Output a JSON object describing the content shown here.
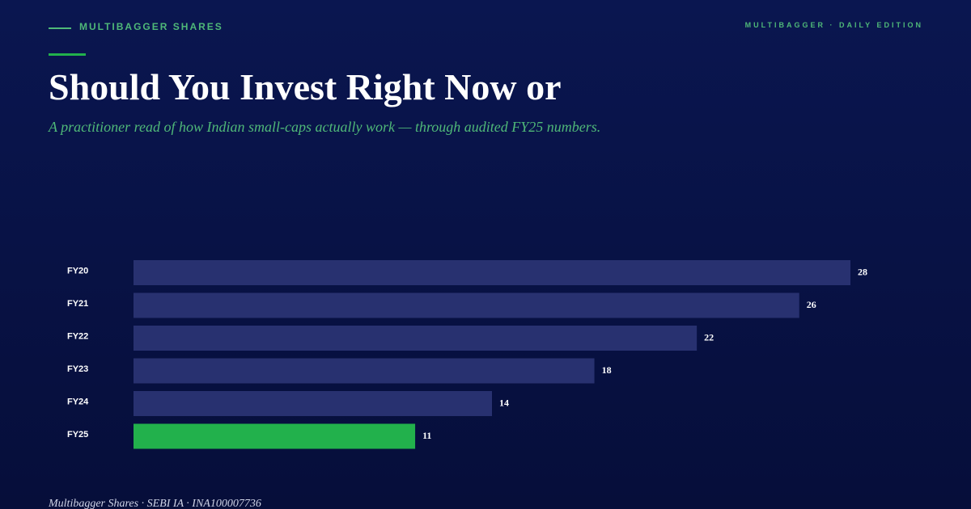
{
  "header": {
    "brand": "MULTIBAGGER SHARES",
    "edition": "MULTIBAGGER · DAILY EDITION"
  },
  "title": "Should You Invest Right Now or",
  "subtitle": "A practitioner read of how Indian small-caps actually work — through audited FY25 numbers.",
  "chart_data": {
    "type": "bar",
    "orientation": "horizontal",
    "categories": [
      "FY20",
      "FY21",
      "FY22",
      "FY23",
      "FY24",
      "FY25"
    ],
    "values": [
      28,
      26,
      22,
      18,
      14,
      11
    ],
    "colors": [
      "#283170",
      "#283170",
      "#283170",
      "#283170",
      "#283170",
      "#22b14c"
    ]
  },
  "footer": "Multibagger Shares · SEBI IA · INA100007736"
}
